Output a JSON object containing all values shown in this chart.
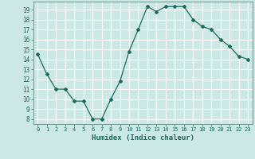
{
  "x": [
    0,
    1,
    2,
    3,
    4,
    5,
    6,
    7,
    8,
    9,
    10,
    11,
    12,
    13,
    14,
    15,
    16,
    17,
    18,
    19,
    20,
    21,
    22,
    23
  ],
  "y": [
    14.5,
    12.5,
    11.0,
    11.0,
    9.8,
    9.8,
    8.0,
    8.0,
    10.0,
    11.8,
    14.8,
    17.0,
    19.3,
    18.8,
    19.3,
    19.3,
    19.3,
    18.0,
    17.3,
    17.0,
    16.0,
    15.3,
    14.3,
    14.0
  ],
  "xlabel": "Humidex (Indice chaleur)",
  "xlim": [
    -0.5,
    23.5
  ],
  "ylim": [
    7.5,
    19.8
  ],
  "yticks": [
    8,
    9,
    10,
    11,
    12,
    13,
    14,
    15,
    16,
    17,
    18,
    19
  ],
  "xticks": [
    0,
    1,
    2,
    3,
    4,
    5,
    6,
    7,
    8,
    9,
    10,
    11,
    12,
    13,
    14,
    15,
    16,
    17,
    18,
    19,
    20,
    21,
    22,
    23
  ],
  "line_color": "#1a6b5a",
  "marker": "D",
  "marker_size": 2.0,
  "bg_color": "#cce8e4",
  "grid_color": "#ffffff",
  "spine_color": "#7a9a95",
  "tick_label_color": "#1a6b5a",
  "xlabel_color": "#1a6b5a"
}
